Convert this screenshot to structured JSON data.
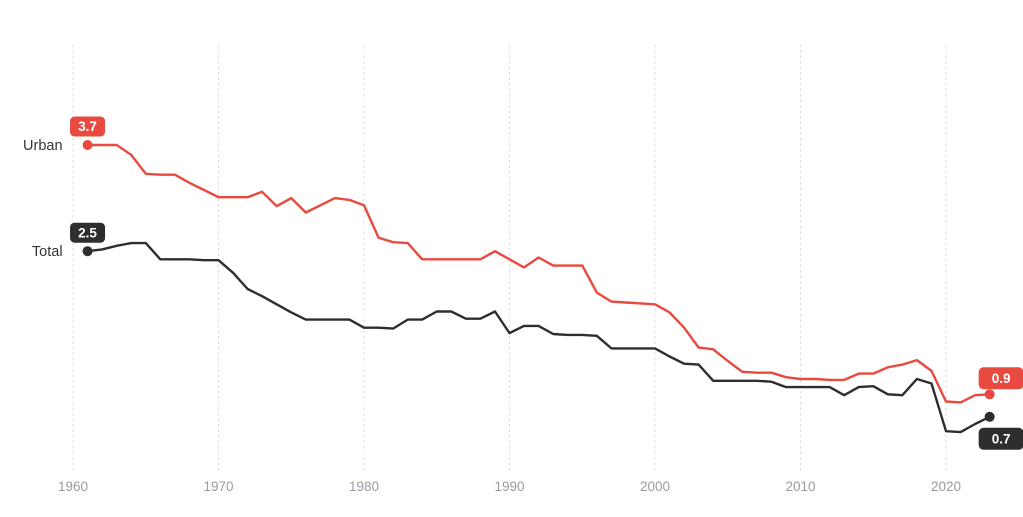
{
  "page": {
    "background": "#ffffff"
  },
  "chart_data": {
    "type": "line",
    "title": "",
    "legend": "inline-labels-at-line-start",
    "grid": {
      "style": "vertical-dotted",
      "color": "#d9d9d9",
      "horizontal": false
    },
    "x_axis": {
      "ticks": [
        "1960",
        "1970",
        "1980",
        "1990",
        "2000",
        "2010",
        "2020"
      ],
      "tick_years": [
        1960,
        1970,
        1980,
        1990,
        2000,
        2010,
        2020
      ],
      "start_year": 1961,
      "end_year": 2023
    },
    "y_axis": {
      "visible": false,
      "approx_range": [
        0,
        4.8
      ]
    },
    "colors": {
      "urban": "#e84a3f",
      "total": "#2e2e2e",
      "axis_label": "#959ca4",
      "gridline": "#d9d9d9",
      "badge_text": "#ffffff"
    },
    "series": [
      {
        "name": "Urban",
        "color": "#e84a3f",
        "start_label": "3.7",
        "end_label": "0.9",
        "values": [
          3.7,
          3.7,
          3.7,
          3.59,
          3.38,
          3.37,
          3.37,
          3.28,
          3.2,
          3.12,
          3.12,
          3.12,
          3.18,
          3.02,
          3.11,
          2.95,
          3.03,
          3.11,
          3.09,
          3.03,
          2.67,
          2.62,
          2.61,
          2.43,
          2.43,
          2.43,
          2.43,
          2.43,
          2.52,
          2.43,
          2.34,
          2.45,
          2.36,
          2.36,
          2.36,
          2.06,
          1.96,
          1.95,
          1.94,
          1.93,
          1.84,
          1.67,
          1.45,
          1.43,
          1.3,
          1.18,
          1.17,
          1.17,
          1.12,
          1.1,
          1.1,
          1.09,
          1.09,
          1.16,
          1.16,
          1.23,
          1.26,
          1.31,
          1.19,
          0.85,
          0.84,
          0.92,
          0.93
        ]
      },
      {
        "name": "Total",
        "color": "#2e2e2e",
        "start_label": "2.5",
        "end_label": "0.7",
        "values": [
          2.52,
          2.54,
          2.58,
          2.61,
          2.61,
          2.43,
          2.43,
          2.43,
          2.42,
          2.42,
          2.28,
          2.1,
          2.02,
          1.93,
          1.84,
          1.76,
          1.76,
          1.76,
          1.76,
          1.67,
          1.67,
          1.66,
          1.76,
          1.76,
          1.85,
          1.85,
          1.77,
          1.77,
          1.85,
          1.61,
          1.69,
          1.69,
          1.6,
          1.59,
          1.59,
          1.58,
          1.44,
          1.44,
          1.44,
          1.44,
          1.35,
          1.27,
          1.26,
          1.08,
          1.08,
          1.08,
          1.08,
          1.07,
          1.01,
          1.01,
          1.01,
          1.01,
          0.92,
          1.01,
          1.02,
          0.93,
          0.92,
          1.1,
          1.05,
          0.52,
          0.51,
          0.6,
          0.68
        ]
      }
    ]
  }
}
